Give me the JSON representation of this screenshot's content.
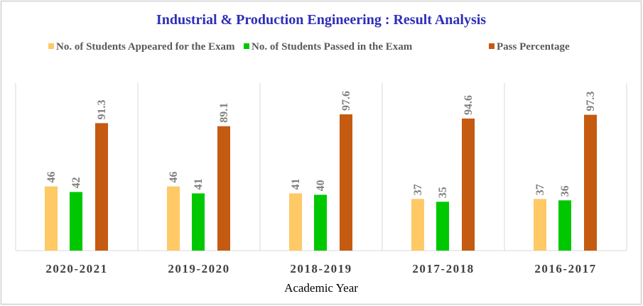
{
  "chart_data": {
    "type": "bar",
    "title": "Industrial & Production Engineering : Result Analysis",
    "xlabel": "Academic Year",
    "ylabel": "",
    "categories": [
      "2020-2021",
      "2019-2020",
      "2018-2019",
      "2017-2018",
      "2016-2017"
    ],
    "series": [
      {
        "name": "No. of Students Appeared for the Exam",
        "color": "#FFC966",
        "values": [
          46,
          46,
          41,
          37,
          37
        ]
      },
      {
        "name": "No. of Students Passed in the Exam",
        "color": "#00C800",
        "values": [
          42,
          41,
          40,
          35,
          36
        ]
      },
      {
        "name": "Pass Percentage",
        "color": "#C55A11",
        "values": [
          91.3,
          89.1,
          97.6,
          94.6,
          97.3
        ]
      }
    ],
    "ylim": [
      0,
      120
    ],
    "grid": false,
    "legend": "top",
    "data_labels": true,
    "title_color": "#2E2EB8"
  }
}
